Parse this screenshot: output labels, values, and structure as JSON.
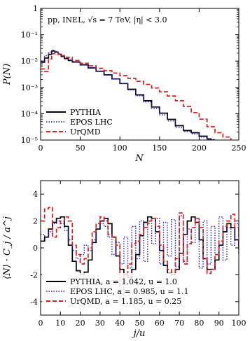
{
  "chart_data": [
    {
      "type": "line",
      "annotation": "pp, INEL, √s = 7 TeV, |η| < 3.0",
      "xlabel": "N",
      "ylabel": "P(N)",
      "xlim": [
        0,
        250
      ],
      "ylim": [
        1e-05,
        1
      ],
      "yscale": "log",
      "xticks": [
        "0",
        "50",
        "100",
        "150",
        "200",
        "250"
      ],
      "yticks": [
        "10⁻⁵",
        "10⁻⁴",
        "10⁻³",
        "10⁻²",
        "10⁻¹",
        "1"
      ],
      "legend_position": "bottom-left",
      "series": [
        {
          "name": "PYTHIA",
          "color": "#000000",
          "style": "solid",
          "x": [
            1,
            5,
            10,
            14,
            18,
            22,
            26,
            30,
            35,
            40,
            50,
            60,
            70,
            80,
            90,
            100,
            110,
            120,
            130,
            140,
            150,
            160,
            170,
            180,
            190,
            200,
            210,
            215,
            220
          ],
          "y": [
            0.009,
            0.013,
            0.018,
            0.024,
            0.022,
            0.018,
            0.015,
            0.0125,
            0.0105,
            0.0092,
            0.0072,
            0.0055,
            0.0041,
            0.003,
            0.0021,
            0.0014,
            0.00085,
            0.00052,
            0.00031,
            0.00018,
            0.000105,
            6.1e-05,
            3.5e-05,
            2.3e-05,
            1.9e-05,
            1.4e-05,
            1.1e-05,
            1e-05,
            1e-05
          ]
        },
        {
          "name": "EPOS LHC",
          "color": "#1a1ad6",
          "style": "dotted",
          "x": [
            1,
            5,
            10,
            14,
            18,
            22,
            26,
            30,
            35,
            40,
            50,
            60,
            70,
            80,
            90,
            100,
            110,
            120,
            130,
            140,
            150,
            160,
            170,
            180,
            190,
            200,
            210,
            220
          ],
          "y": [
            0.01,
            0.016,
            0.022,
            0.026,
            0.023,
            0.019,
            0.016,
            0.013,
            0.011,
            0.0095,
            0.0074,
            0.0056,
            0.0042,
            0.003,
            0.0021,
            0.0014,
            0.0008,
            0.00048,
            0.00028,
            0.00016,
            9e-05,
            5.3e-05,
            3e-05,
            2.1e-05,
            1.7e-05,
            1.3e-05,
            1.05e-05,
            1e-05
          ]
        },
        {
          "name": "UrQMD",
          "color": "#e01c1c",
          "style": "dashed",
          "x": [
            0,
            5,
            10,
            14,
            18,
            22,
            26,
            30,
            40,
            50,
            60,
            70,
            80,
            90,
            100,
            110,
            120,
            130,
            140,
            150,
            160,
            170,
            180,
            190,
            200,
            210,
            220,
            230,
            240
          ],
          "y": [
            0.005,
            0.004,
            0.012,
            0.019,
            0.02,
            0.018,
            0.016,
            0.014,
            0.0105,
            0.0082,
            0.0066,
            0.0053,
            0.0043,
            0.0035,
            0.0028,
            0.0022,
            0.0017,
            0.0013,
            0.00095,
            0.00068,
            0.00047,
            0.00031,
            0.00019,
            0.00011,
            6.2e-05,
            3.2e-05,
            1.9e-05,
            1.3e-05,
            1e-05
          ]
        }
      ]
    },
    {
      "type": "line",
      "xlabel": "j/u",
      "ylabel": "⟨N⟩ · C_j / a^j",
      "xlim": [
        0,
        100
      ],
      "ylim": [
        -5,
        5
      ],
      "xticks": [
        "0",
        "10",
        "20",
        "30",
        "40",
        "50",
        "60",
        "70",
        "80",
        "90",
        "100"
      ],
      "yticks": [
        "-4",
        "-2",
        "0",
        "2",
        "4"
      ],
      "legend_position": "bottom-left",
      "series": [
        {
          "name": "PYTHIA, a = 1.042, u = 1.0",
          "color": "#000000",
          "style": "solid",
          "x": [
            0,
            2,
            4,
            6,
            8,
            10,
            12,
            14,
            16,
            18,
            20,
            22,
            24,
            26,
            28,
            30,
            32,
            34,
            36,
            38,
            40,
            42,
            44,
            46,
            48,
            50,
            52,
            54,
            56,
            58,
            60,
            62,
            64,
            66,
            68,
            70,
            72,
            74,
            76,
            78,
            80,
            82,
            84,
            86,
            88,
            90,
            92,
            94,
            96,
            98,
            100
          ],
          "y": [
            0.5,
            0.8,
            1.4,
            1.9,
            2.2,
            2.3,
            1.6,
            0.2,
            -1.0,
            -1.7,
            -2.0,
            -1.8,
            -0.9,
            0.4,
            1.4,
            2.0,
            2.2,
            1.8,
            0.8,
            -0.6,
            -1.6,
            -2.0,
            -2.2,
            -1.6,
            -0.5,
            0.9,
            1.9,
            2.3,
            2.2,
            1.2,
            -0.2,
            -1.3,
            -1.9,
            -2.0,
            -1.6,
            -0.4,
            1.0,
            2.0,
            2.3,
            1.9,
            0.6,
            -0.8,
            -1.6,
            -1.6,
            -0.9,
            0.2,
            1.2,
            1.8,
            1.5,
            0.6,
            0.0
          ]
        },
        {
          "name": "EPOS LHC, a = 0.985, u = 1.1",
          "color": "#1a1ad6",
          "style": "dotted",
          "x": [
            0,
            2,
            4,
            6,
            8,
            10,
            12,
            14,
            16,
            18,
            20,
            22,
            24,
            26,
            28,
            30,
            32,
            34,
            36,
            38,
            40,
            42,
            44,
            46,
            48,
            50,
            52,
            54,
            56,
            58,
            60,
            62,
            64,
            66,
            68,
            70,
            72,
            74,
            76,
            78,
            80,
            82,
            84,
            86,
            88,
            90,
            92,
            94,
            96,
            98,
            100
          ],
          "y": [
            1.0,
            0.8,
            1.2,
            1.8,
            2.0,
            1.8,
            1.3,
            0.6,
            -0.2,
            -0.8,
            -0.5,
            0.2,
            -0.2,
            0.6,
            1.4,
            1.8,
            1.6,
            0.8,
            -0.5,
            0.4,
            -1.2,
            0.8,
            -1.5,
            1.6,
            -0.8,
            2.0,
            -1.0,
            1.8,
            0.3,
            2.2,
            -1.2,
            1.9,
            -0.6,
            2.1,
            -1.4,
            2.4,
            -1.0,
            1.4,
            0.4,
            2.2,
            -1.5,
            2.0,
            -1.2,
            1.6,
            -0.5,
            2.3,
            -0.9,
            1.5,
            0.2,
            1.8,
            1.0
          ]
        },
        {
          "name": "UrQMD, a = 1.185, u = 0.25",
          "color": "#e01c1c",
          "style": "dashed",
          "x": [
            0,
            2,
            4,
            6,
            8,
            10,
            12,
            14,
            16,
            18,
            20,
            22,
            24,
            26,
            28,
            30,
            32,
            34,
            36,
            38,
            40,
            42,
            44,
            46,
            48,
            50,
            52,
            54,
            56,
            58,
            60,
            62,
            64,
            66,
            68,
            70,
            72,
            74,
            76,
            78,
            80,
            82,
            84,
            86,
            88,
            90,
            92,
            94,
            96,
            98,
            100
          ],
          "y": [
            2.0,
            2.9,
            3.0,
            0.8,
            1.5,
            2.0,
            2.3,
            2.0,
            0.2,
            -0.5,
            -1.2,
            -0.8,
            0.0,
            1.2,
            1.8,
            2.3,
            2.0,
            1.0,
            0.8,
            0.2,
            -3.9,
            -2.0,
            -1.2,
            0.3,
            0.5,
            1.0,
            1.5,
            2.0,
            2.2,
            1.6,
            0.2,
            -1.0,
            -1.6,
            -1.8,
            -0.8,
            2.6,
            -1.2,
            0.3,
            1.5,
            2.2,
            1.5,
            -0.8,
            -1.9,
            -1.6,
            -0.5,
            0.5,
            1.6,
            2.0,
            2.5,
            1.5,
            -0.4
          ]
        }
      ]
    }
  ]
}
